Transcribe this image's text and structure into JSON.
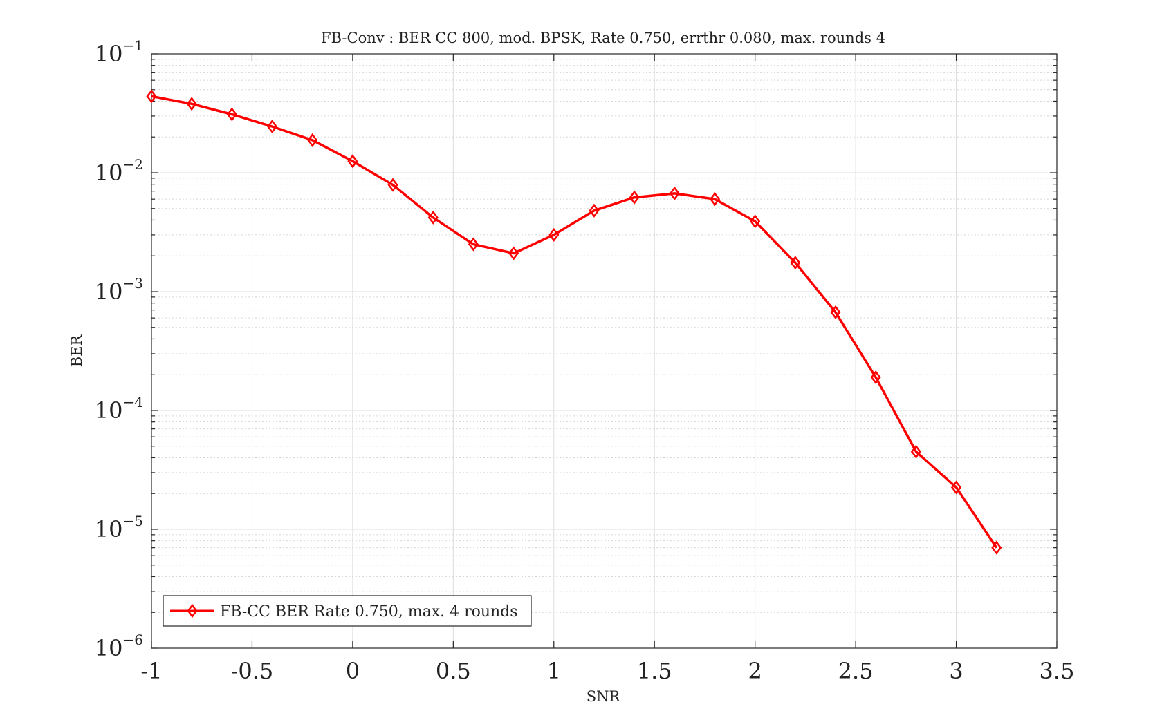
{
  "chart_data": {
    "type": "line",
    "title": "FB-Conv : BER CC 800, mod. BPSK, Rate 0.750, errthr 0.080, max. rounds 4",
    "xlabel": "SNR",
    "ylabel": "BER",
    "xlim": [
      -1,
      3.5
    ],
    "ylim": [
      1e-06,
      0.1
    ],
    "yscale": "log",
    "grid": true,
    "minor_grid": true,
    "legend_position": "bottom-left",
    "x_ticks": [
      -1,
      -0.5,
      0,
      0.5,
      1,
      1.5,
      2,
      2.5,
      3,
      3.5
    ],
    "x_tick_labels": [
      "-1",
      "-0.5",
      "0",
      "0.5",
      "1",
      "1.5",
      "2",
      "2.5",
      "3",
      "3.5"
    ],
    "y_ticks": [
      {
        "value": 1e-06,
        "base": "10",
        "exp": "−6"
      },
      {
        "value": 1e-05,
        "base": "10",
        "exp": "−5"
      },
      {
        "value": 0.0001,
        "base": "10",
        "exp": "−4"
      },
      {
        "value": 0.001,
        "base": "10",
        "exp": "−3"
      },
      {
        "value": 0.01,
        "base": "10",
        "exp": "−2"
      },
      {
        "value": 0.1,
        "base": "10",
        "exp": "−1"
      }
    ],
    "series": [
      {
        "name": "FB-CC BER Rate 0.750, max. 4 rounds",
        "color": "#ff0000",
        "marker": "diamond",
        "x": [
          -1,
          -0.8,
          -0.6,
          -0.4,
          -0.2,
          0,
          0.2,
          0.4,
          0.6,
          0.8,
          1,
          1.2,
          1.4,
          1.6,
          1.8,
          2,
          2.2,
          2.4,
          2.6,
          2.8,
          3,
          3.2
        ],
        "y": [
          0.044,
          0.038,
          0.031,
          0.0245,
          0.0188,
          0.0125,
          0.0079,
          0.0042,
          0.0025,
          0.0021,
          0.003,
          0.0048,
          0.0062,
          0.0067,
          0.006,
          0.0039,
          0.00175,
          0.00067,
          0.00019,
          4.5e-05,
          2.25e-05,
          7e-06
        ]
      }
    ]
  }
}
